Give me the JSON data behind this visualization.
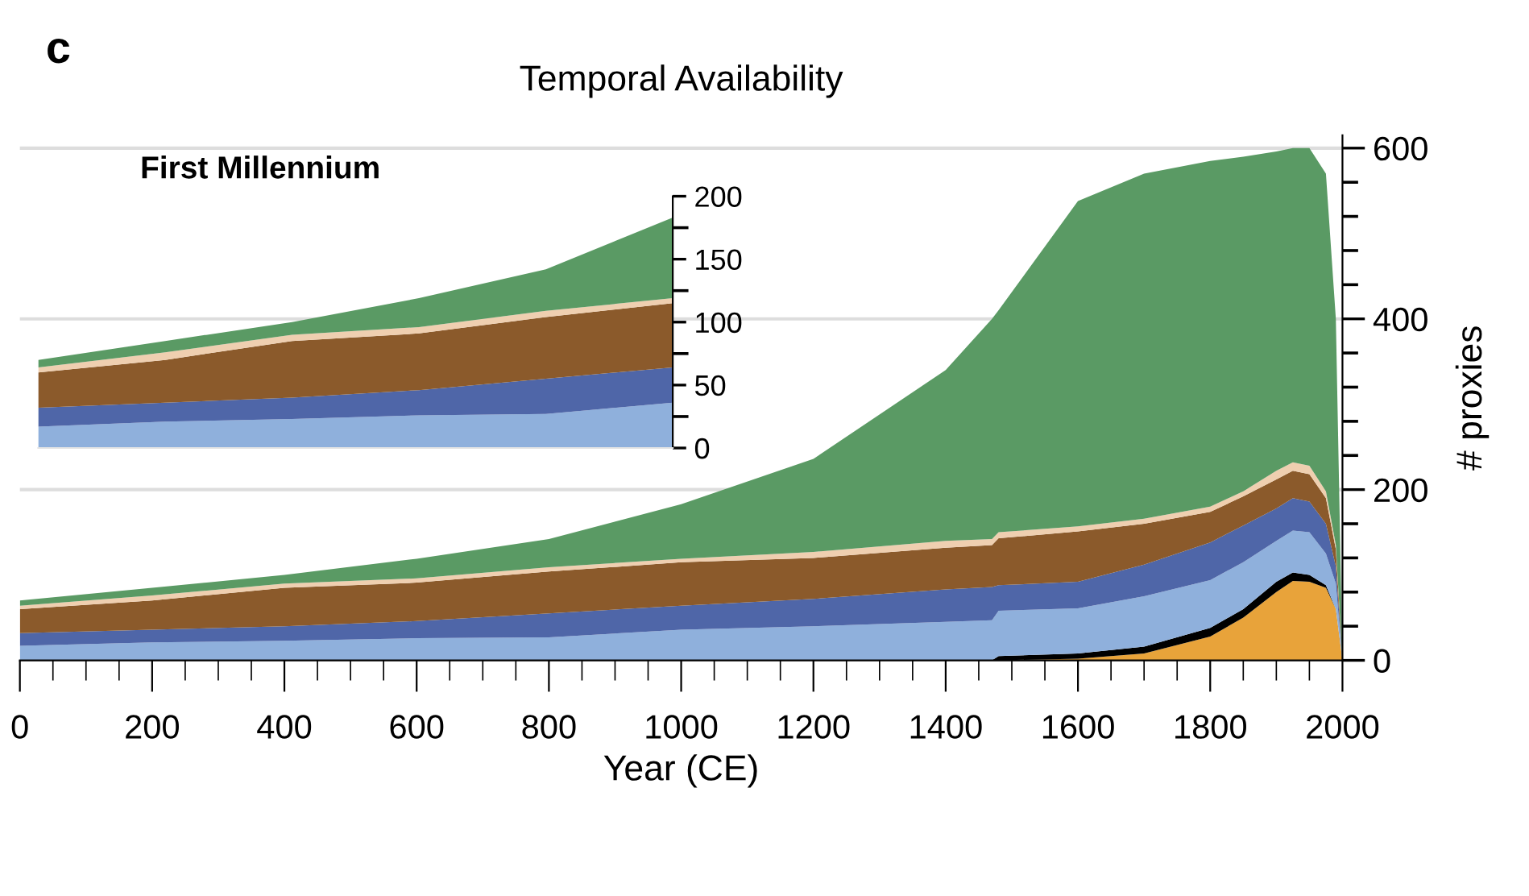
{
  "chart_data": [
    {
      "type": "area",
      "stacked": true,
      "title": "Temporal Availability",
      "xlabel": "Year (CE)",
      "ylabel": "# proxies",
      "annotations": [
        "c"
      ],
      "grid": "y",
      "x": [
        0,
        200,
        400,
        600,
        800,
        1000,
        1200,
        1400,
        1470,
        1480,
        1600,
        1700,
        1800,
        1850,
        1900,
        1925,
        1950,
        1975,
        1990,
        2000
      ],
      "xlim": [
        0,
        2000
      ],
      "ylim": [
        0,
        615
      ],
      "xticks": [
        0,
        {
          "value": 50,
          "label": null
        },
        {
          "value": 100,
          "label": null
        },
        {
          "value": 150,
          "label": null
        },
        200,
        {
          "value": 250,
          "label": null
        },
        {
          "value": 300,
          "label": null
        },
        {
          "value": 350,
          "label": null
        },
        400,
        {
          "value": 450,
          "label": null
        },
        {
          "value": 500,
          "label": null
        },
        {
          "value": 550,
          "label": null
        },
        600,
        {
          "value": 650,
          "label": null
        },
        {
          "value": 700,
          "label": null
        },
        {
          "value": 750,
          "label": null
        },
        800,
        {
          "value": 850,
          "label": null
        },
        {
          "value": 900,
          "label": null
        },
        {
          "value": 950,
          "label": null
        },
        1000,
        {
          "value": 1050,
          "label": null
        },
        {
          "value": 1100,
          "label": null
        },
        {
          "value": 1150,
          "label": null
        },
        1200,
        {
          "value": 1250,
          "label": null
        },
        {
          "value": 1300,
          "label": null
        },
        {
          "value": 1350,
          "label": null
        },
        1400,
        {
          "value": 1450,
          "label": null
        },
        {
          "value": 1500,
          "label": null
        },
        {
          "value": 1550,
          "label": null
        },
        1600,
        {
          "value": 1650,
          "label": null
        },
        {
          "value": 1700,
          "label": null
        },
        {
          "value": 1750,
          "label": null
        },
        1800,
        {
          "value": 1850,
          "label": null
        },
        {
          "value": 1900,
          "label": null
        },
        {
          "value": 1950,
          "label": null
        },
        2000
      ],
      "yticks": [
        0,
        {
          "value": 40,
          "label": null
        },
        {
          "value": 80,
          "label": null
        },
        {
          "value": 120,
          "label": null
        },
        {
          "value": 160,
          "label": null
        },
        200,
        {
          "value": 240,
          "label": null
        },
        {
          "value": 280,
          "label": null
        },
        {
          "value": 320,
          "label": null
        },
        {
          "value": 360,
          "label": null
        },
        400,
        {
          "value": 440,
          "label": null
        },
        {
          "value": 480,
          "label": null
        },
        {
          "value": 520,
          "label": null
        },
        {
          "value": 560,
          "label": null
        },
        600
      ],
      "series": [
        {
          "color": "#e8a33a",
          "values": [
            0,
            0,
            0,
            0,
            0,
            0,
            0,
            0,
            0,
            0,
            2,
            8,
            28,
            50,
            80,
            93,
            92,
            85,
            60,
            0
          ]
        },
        {
          "color": "#000000",
          "values": [
            0,
            0,
            0,
            0,
            0,
            0,
            0,
            0,
            0,
            5,
            6,
            8,
            10,
            10,
            12,
            10,
            8,
            3,
            0,
            0
          ]
        },
        {
          "color": "#8fb0dc",
          "values": [
            17,
            21,
            23,
            26,
            27,
            36,
            40,
            45,
            47,
            53,
            53,
            59,
            56,
            55,
            48,
            49,
            50,
            37,
            30,
            0
          ]
        },
        {
          "color": "#4f66a8",
          "values": [
            15,
            15,
            17,
            20,
            28,
            28,
            32,
            38,
            39,
            30,
            31,
            37,
            44,
            43,
            38,
            38,
            36,
            35,
            20,
            0
          ]
        },
        {
          "color": "#8b5a2b",
          "values": [
            28,
            34,
            45,
            45,
            49,
            51,
            48,
            49,
            49,
            55,
            59,
            48,
            36,
            34,
            34,
            32,
            32,
            30,
            20,
            0
          ]
        },
        {
          "color": "#efcfb0",
          "values": [
            4,
            6,
            5,
            5,
            5,
            4,
            7,
            8,
            7,
            7,
            6,
            6,
            6,
            6,
            10,
            10,
            10,
            8,
            5,
            0
          ]
        },
        {
          "color": "#5a9a64",
          "values": [
            6,
            9,
            10,
            23,
            33,
            64,
            109,
            200,
            258,
            260,
            381,
            404,
            405,
            392,
            374,
            368,
            372,
            372,
            265,
            0
          ]
        }
      ]
    },
    {
      "type": "area",
      "stacked": true,
      "title": "First Millennium",
      "tick_labels": "y",
      "categories": [
        null,
        null,
        null,
        null,
        null,
        null
      ],
      "ylim": [
        0,
        200
      ],
      "yticks": [
        0,
        {
          "value": 25,
          "label": null
        },
        50,
        {
          "value": 75,
          "label": null
        },
        100,
        {
          "value": 125,
          "label": null
        },
        150,
        {
          "value": 175,
          "label": null
        },
        200
      ],
      "series": [
        {
          "color": "#8fb0dc",
          "values": [
            17,
            21,
            23,
            26,
            27,
            36
          ]
        },
        {
          "color": "#4f66a8",
          "values": [
            15,
            15,
            17,
            20,
            28,
            28
          ]
        },
        {
          "color": "#8b5a2b",
          "values": [
            28,
            34,
            45,
            45,
            49,
            51
          ]
        },
        {
          "color": "#efcfb0",
          "values": [
            4,
            6,
            5,
            5,
            5,
            4
          ]
        },
        {
          "color": "#5a9a64",
          "values": [
            6,
            9,
            10,
            23,
            33,
            64
          ]
        }
      ]
    }
  ]
}
